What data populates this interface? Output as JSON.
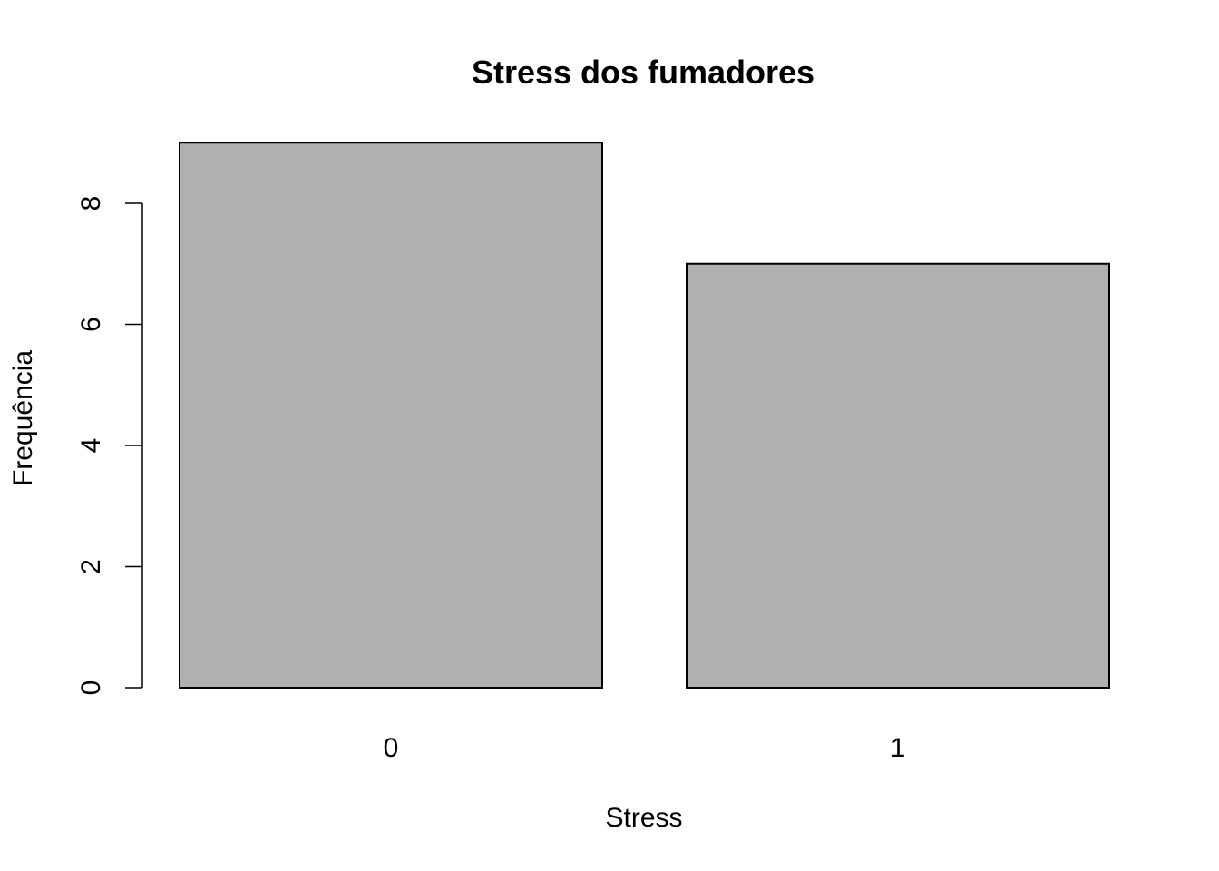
{
  "chart_data": {
    "type": "bar",
    "title": "Stress dos fumadores",
    "xlabel": "Stress",
    "ylabel": "Frequência",
    "categories": [
      "0",
      "1"
    ],
    "values": [
      9,
      7
    ],
    "ylim": [
      0,
      9
    ],
    "yticks": [
      0,
      2,
      4,
      6,
      8
    ],
    "grid": false,
    "bar_color": "#b0b0b0",
    "edge_color": "#000000"
  }
}
